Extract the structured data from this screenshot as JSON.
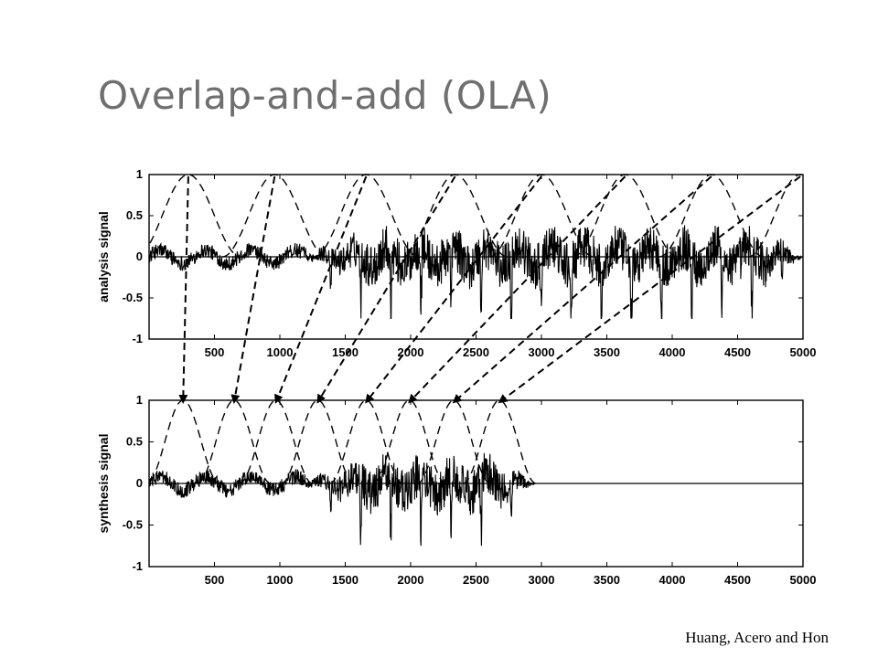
{
  "slide": {
    "title": "Overlap-and-add (OLA)",
    "credit": "Huang, Acero and Hon"
  },
  "chart_data": [
    {
      "type": "line",
      "ylabel": "analysis signal",
      "xlim": [
        0,
        5000
      ],
      "ylim": [
        -1,
        1
      ],
      "xticks": [
        500,
        1000,
        1500,
        2000,
        2500,
        3000,
        3500,
        4000,
        4500,
        5000
      ],
      "xtick_labels": [
        "500",
        "1000",
        "1500",
        "2000",
        "2500",
        "3000",
        "3500",
        "4000",
        "4500",
        "5000"
      ],
      "yticks": [
        -1,
        -0.5,
        0,
        0.5,
        1
      ],
      "ytick_labels": [
        "-1",
        "-0.5",
        "0",
        "0.5",
        "1"
      ],
      "window_peaks_x": [
        300,
        960,
        1660,
        2340,
        3000,
        3640,
        4300,
        4980
      ],
      "window_length": 800,
      "series": [
        {
          "role": "analysis windows",
          "style": "dashed"
        },
        {
          "role": "speech waveform",
          "style": "solid",
          "x_range": [
            0,
            5000
          ]
        }
      ]
    },
    {
      "type": "line",
      "ylabel": "synthesis signal",
      "xlim": [
        0,
        5000
      ],
      "ylim": [
        -1,
        1
      ],
      "xticks": [
        500,
        1000,
        1500,
        2000,
        2500,
        3000,
        3500,
        4000,
        4500,
        5000
      ],
      "xtick_labels": [
        "500",
        "1000",
        "1500",
        "2000",
        "2500",
        "3000",
        "3500",
        "4000",
        "4500",
        "5000"
      ],
      "yticks": [
        -1,
        -0.5,
        0,
        0.5,
        1
      ],
      "ytick_labels": [
        "-1",
        "-0.5",
        "0",
        "0.5",
        "1"
      ],
      "window_peaks_x": [
        260,
        650,
        970,
        1290,
        1660,
        1990,
        2330,
        2680
      ],
      "window_length": 560,
      "series": [
        {
          "role": "synthesis windows",
          "style": "dashed"
        },
        {
          "role": "speech waveform",
          "style": "solid",
          "x_range": [
            0,
            2950
          ]
        }
      ]
    }
  ]
}
